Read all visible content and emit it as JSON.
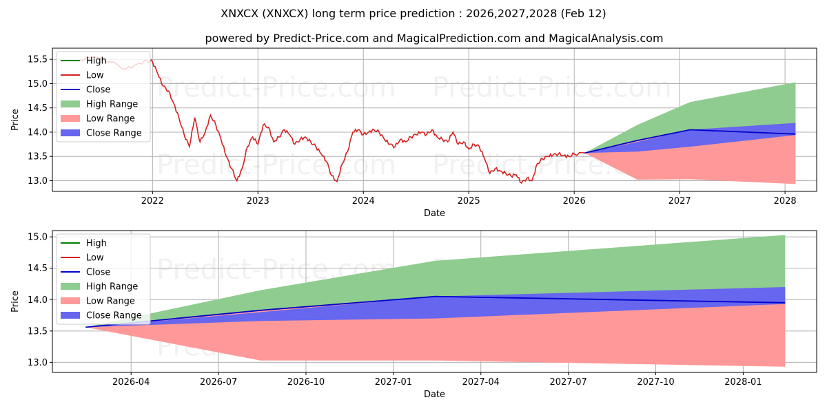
{
  "title": "XNXCX (XNXCX) long term price prediction : 2026,2027,2028 (Feb 12)",
  "subtitle": "powered by Predict-Price.com and MagicalPrediction.com and MagicalAnalysis.com",
  "watermark": "Predict-Price.com",
  "colors": {
    "high": "#008000",
    "low": "#d62020",
    "close": "#0000cc",
    "high_range": "#8fcc8f",
    "low_range": "#ff9999",
    "close_range": "#6666ee"
  },
  "legend": [
    {
      "label": "High",
      "kind": "line",
      "color_key": "high"
    },
    {
      "label": "Low",
      "kind": "line",
      "color_key": "low"
    },
    {
      "label": "Close",
      "kind": "line",
      "color_key": "close"
    },
    {
      "label": "High Range",
      "kind": "patch",
      "color_key": "high_range"
    },
    {
      "label": "Low Range",
      "kind": "patch",
      "color_key": "low_range"
    },
    {
      "label": "Close Range",
      "kind": "patch",
      "color_key": "close_range"
    }
  ],
  "chart_data": [
    {
      "type": "line",
      "title": "XNXCX (XNXCX) long term price prediction : 2026,2027,2028 (Feb 12)",
      "xlabel": "Date",
      "ylabel": "Price",
      "xlim": [
        2021.05,
        2028.3
      ],
      "ylim": [
        12.78,
        15.73
      ],
      "x_ticks": [
        {
          "v": 2022.0,
          "label": "2022"
        },
        {
          "v": 2023.0,
          "label": "2023"
        },
        {
          "v": 2024.0,
          "label": "2024"
        },
        {
          "v": 2025.0,
          "label": "2025"
        },
        {
          "v": 2026.0,
          "label": "2026"
        },
        {
          "v": 2027.0,
          "label": "2027"
        },
        {
          "v": 2028.0,
          "label": "2028"
        }
      ],
      "y_ticks": [
        {
          "v": 13.0,
          "label": "13.0"
        },
        {
          "v": 13.5,
          "label": "13.5"
        },
        {
          "v": 14.0,
          "label": "14.0"
        },
        {
          "v": 14.5,
          "label": "14.5"
        },
        {
          "v": 15.0,
          "label": "15.0"
        },
        {
          "v": 15.5,
          "label": "15.5"
        }
      ],
      "grid": true,
      "legend_position": "top-left",
      "history": {
        "x": [
          2021.3,
          2021.45,
          2021.6,
          2021.75,
          2021.85,
          2021.95,
          2022.0,
          2022.05,
          2022.1,
          2022.15,
          2022.2,
          2022.25,
          2022.3,
          2022.35,
          2022.4,
          2022.45,
          2022.5,
          2022.55,
          2022.6,
          2022.65,
          2022.7,
          2022.75,
          2022.8,
          2022.85,
          2022.9,
          2022.95,
          2023.0,
          2023.05,
          2023.1,
          2023.15,
          2023.2,
          2023.25,
          2023.3,
          2023.35,
          2023.4,
          2023.45,
          2023.5,
          2023.55,
          2023.6,
          2023.65,
          2023.7,
          2023.75,
          2023.8,
          2023.85,
          2023.9,
          2023.95,
          2024.0,
          2024.05,
          2024.1,
          2024.15,
          2024.2,
          2024.25,
          2024.3,
          2024.35,
          2024.4,
          2024.45,
          2024.5,
          2024.55,
          2024.6,
          2024.65,
          2024.7,
          2024.75,
          2024.8,
          2024.85,
          2024.9,
          2024.95,
          2025.0,
          2025.05,
          2025.1,
          2025.15,
          2025.2,
          2025.25,
          2025.3,
          2025.35,
          2025.4,
          2025.45,
          2025.5,
          2025.55,
          2025.6,
          2025.65,
          2025.7,
          2025.75,
          2025.8,
          2025.85,
          2025.9,
          2025.95,
          2026.0,
          2026.1
        ],
        "y": [
          15.48,
          15.55,
          15.45,
          15.3,
          15.4,
          15.47,
          15.45,
          15.2,
          14.95,
          14.85,
          14.6,
          14.3,
          13.95,
          13.7,
          14.3,
          13.8,
          14.0,
          14.35,
          14.15,
          13.85,
          13.5,
          13.25,
          13.0,
          13.25,
          13.7,
          13.9,
          13.75,
          14.15,
          14.1,
          13.8,
          13.9,
          14.05,
          13.95,
          13.75,
          13.85,
          13.9,
          13.8,
          13.7,
          13.55,
          13.4,
          13.1,
          12.98,
          13.35,
          13.6,
          14.0,
          14.05,
          13.95,
          14.0,
          14.05,
          14.0,
          13.85,
          13.75,
          13.7,
          13.85,
          13.8,
          13.9,
          13.95,
          14.0,
          13.95,
          14.05,
          13.9,
          13.85,
          13.8,
          14.0,
          13.75,
          13.8,
          13.65,
          13.75,
          13.7,
          13.45,
          13.15,
          13.25,
          13.2,
          13.15,
          13.1,
          13.12,
          12.95,
          13.05,
          13.0,
          13.35,
          13.45,
          13.5,
          13.53,
          13.55,
          13.52,
          13.5,
          13.55,
          13.57
        ]
      },
      "forecast": {
        "x": [
          2026.1,
          2026.6,
          2027.1,
          2028.1
        ],
        "close": [
          13.57,
          13.83,
          14.05,
          13.96
        ],
        "high_range_upper": [
          13.57,
          14.15,
          14.62,
          15.03
        ],
        "close_range_upper": [
          13.57,
          13.8,
          14.05,
          14.19
        ],
        "close_range_lower": [
          13.57,
          13.6,
          13.7,
          13.94
        ],
        "low_range_lower": [
          13.57,
          13.02,
          13.03,
          12.93
        ]
      }
    },
    {
      "type": "line",
      "title": "",
      "xlabel": "Date",
      "ylabel": "Price",
      "xlim": [
        2026.025,
        2028.21
      ],
      "ylim": [
        12.84,
        15.1
      ],
      "x_ticks": [
        {
          "v": 2026.25,
          "label": "2026-04"
        },
        {
          "v": 2026.5,
          "label": "2026-07"
        },
        {
          "v": 2026.75,
          "label": "2026-10"
        },
        {
          "v": 2027.0,
          "label": "2027-01"
        },
        {
          "v": 2027.25,
          "label": "2027-04"
        },
        {
          "v": 2027.5,
          "label": "2027-07"
        },
        {
          "v": 2027.75,
          "label": "2027-10"
        },
        {
          "v": 2028.0,
          "label": "2028-01"
        }
      ],
      "y_ticks": [
        {
          "v": 13.0,
          "label": "13.0"
        },
        {
          "v": 13.5,
          "label": "13.5"
        },
        {
          "v": 14.0,
          "label": "14.0"
        },
        {
          "v": 14.5,
          "label": "14.5"
        },
        {
          "v": 15.0,
          "label": "15.0"
        }
      ],
      "grid": true,
      "legend_position": "top-left",
      "history": {
        "x": [],
        "y": []
      },
      "forecast": {
        "x": [
          2026.12,
          2026.62,
          2027.12,
          2028.12
        ],
        "close": [
          13.56,
          13.83,
          14.05,
          13.95
        ],
        "high_range_upper": [
          13.56,
          14.15,
          14.62,
          15.03
        ],
        "close_range_upper": [
          13.56,
          13.8,
          14.05,
          14.2
        ],
        "close_range_lower": [
          13.56,
          13.66,
          13.7,
          13.93
        ],
        "low_range_lower": [
          13.56,
          13.03,
          13.03,
          12.93
        ]
      }
    }
  ]
}
